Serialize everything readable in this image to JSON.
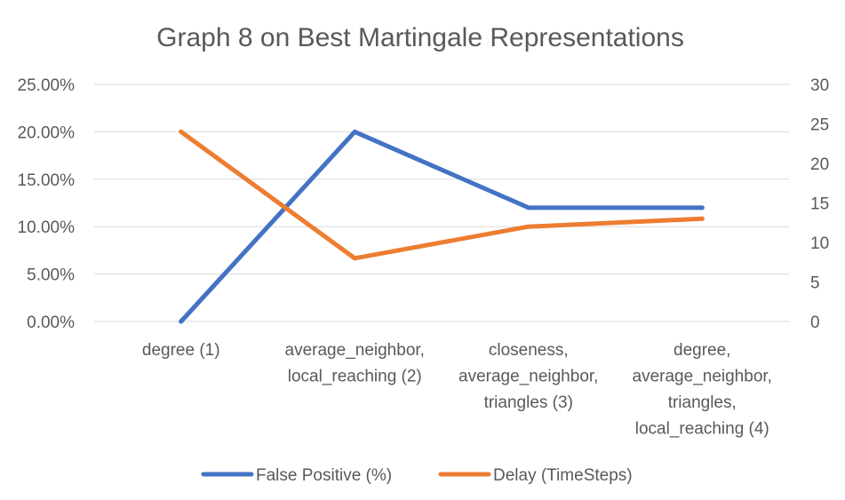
{
  "chart_data": {
    "type": "line",
    "title": "Graph 8 on Best Martingale Representations",
    "categories": [
      [
        "degree (1)"
      ],
      [
        "average_neighbor,",
        "local_reaching (2)"
      ],
      [
        "closeness,",
        "average_neighbor,",
        "triangles (3)"
      ],
      [
        "degree,",
        "average_neighbor,",
        "triangles,",
        "local_reaching (4)"
      ]
    ],
    "left_axis": {
      "ticks": [
        "0.00%",
        "5.00%",
        "10.00%",
        "15.00%",
        "20.00%",
        "25.00%"
      ],
      "ylim": [
        0,
        25
      ]
    },
    "right_axis": {
      "ticks": [
        "0",
        "5",
        "10",
        "15",
        "20",
        "25",
        "30"
      ],
      "ylim": [
        0,
        30
      ]
    },
    "series": [
      {
        "name": "False Positive (%)",
        "axis": "left",
        "color": "#4472C4",
        "values": [
          0,
          20,
          12,
          12
        ]
      },
      {
        "name": "Delay (TimeSteps)",
        "axis": "right",
        "color": "#ED7D31",
        "values": [
          24,
          8,
          12,
          13
        ]
      }
    ],
    "grid": true,
    "legend": "bottom"
  }
}
